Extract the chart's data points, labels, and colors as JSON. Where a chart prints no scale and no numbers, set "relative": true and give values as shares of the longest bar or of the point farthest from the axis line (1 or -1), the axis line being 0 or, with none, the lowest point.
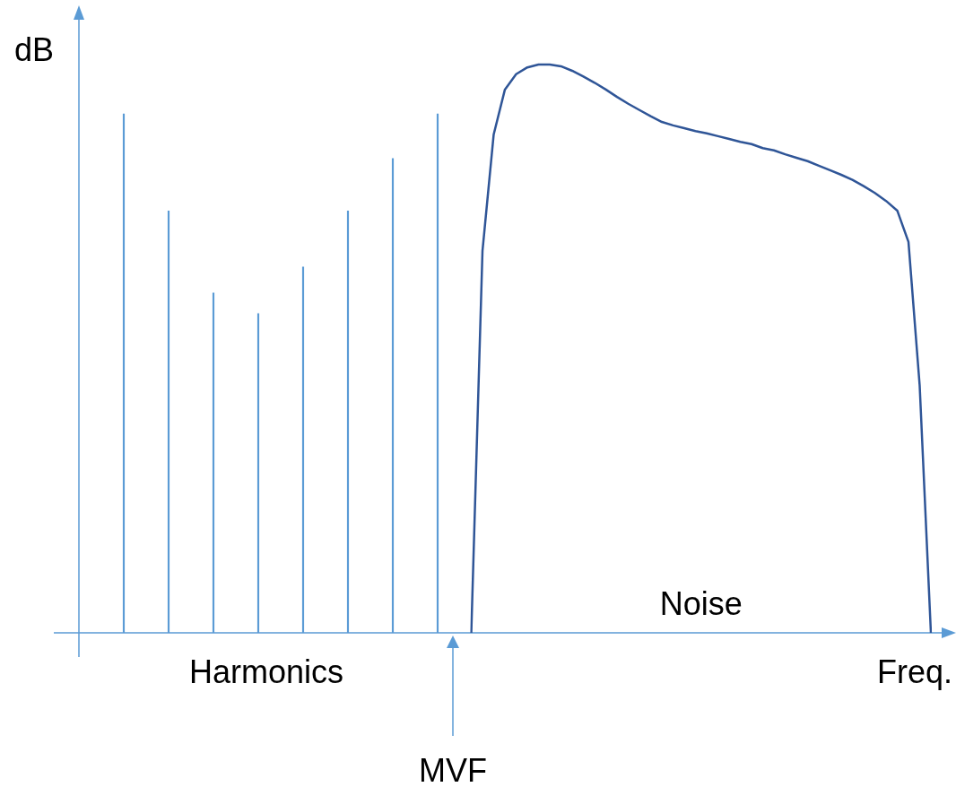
{
  "chart_data": [
    {
      "type": "bar",
      "relative": true,
      "tick_labels": false,
      "ylabel": "dB",
      "annotations": [
        "Harmonics",
        "MVF"
      ],
      "color": "#5b9bd5",
      "categories": [
        null,
        null,
        null,
        null,
        null,
        null,
        null,
        null
      ],
      "values": [
        1,
        0.813,
        0.655,
        0.615,
        0.705,
        0.813,
        0.914,
        1
      ]
    },
    {
      "type": "line",
      "relative": true,
      "tick_labels": false,
      "xlabel": "Freq.",
      "annotations": [
        "Noise"
      ],
      "color": "#2f5597",
      "categories": [
        null,
        null,
        null,
        null,
        null,
        null,
        null,
        null,
        null,
        null,
        null,
        null,
        null,
        null,
        null,
        null,
        null,
        null,
        null,
        null,
        null,
        null,
        null,
        null,
        null,
        null,
        null,
        null,
        null,
        null,
        null,
        null,
        null,
        null,
        null,
        null,
        null,
        null,
        null,
        null,
        null,
        null
      ],
      "values": [
        0,
        0.672,
        0.877,
        0.956,
        0.983,
        0.995,
        1,
        1,
        0.997,
        0.989,
        0.979,
        0.968,
        0.956,
        0.943,
        0.931,
        0.92,
        0.909,
        0.899,
        0.893,
        0.888,
        0.883,
        0.879,
        0.874,
        0.869,
        0.864,
        0.86,
        0.853,
        0.849,
        0.842,
        0.836,
        0.83,
        0.822,
        0.814,
        0.806,
        0.797,
        0.786,
        0.774,
        0.76,
        0.743,
        0.688,
        0.435,
        0
      ]
    }
  ]
}
